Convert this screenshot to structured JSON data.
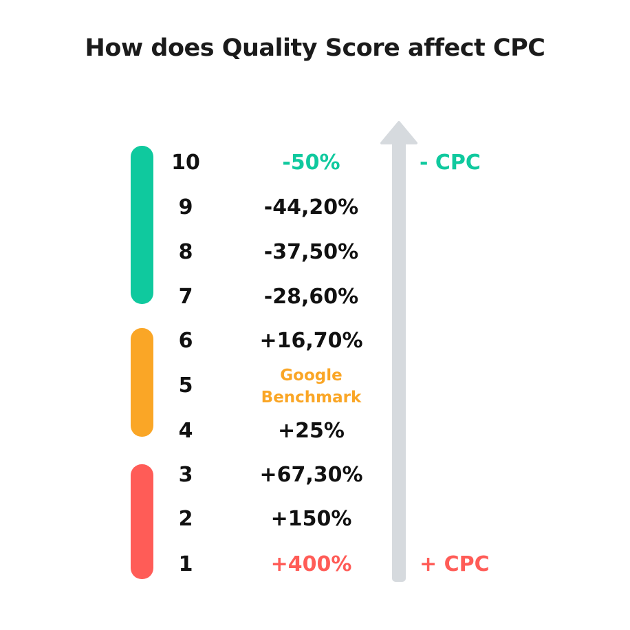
{
  "title": "How does Quality Score affect CPC",
  "colors": {
    "green": "#0fc99e",
    "orange": "#faa626",
    "red": "#ff5c57",
    "arrow": "#d6dade",
    "text": "#111111"
  },
  "rows": [
    {
      "score": "10",
      "value": "-50%",
      "value_color": "green"
    },
    {
      "score": "9",
      "value": "-44,20%",
      "value_color": "text"
    },
    {
      "score": "8",
      "value": "-37,50%",
      "value_color": "text"
    },
    {
      "score": "7",
      "value": "-28,60%",
      "value_color": "text"
    },
    {
      "score": "6",
      "value": "+16,70%",
      "value_color": "text"
    },
    {
      "score": "5",
      "value": "",
      "value_color": "text"
    },
    {
      "score": "4",
      "value": "+25%",
      "value_color": "text"
    },
    {
      "score": "3",
      "value": "+67,30%",
      "value_color": "text"
    },
    {
      "score": "2",
      "value": "+150%",
      "value_color": "text"
    },
    {
      "score": "1",
      "value": "+400%",
      "value_color": "red"
    }
  ],
  "benchmark": {
    "line1": "Google",
    "line2": "Benchmark"
  },
  "cpc_labels": {
    "top": "- CPC",
    "bottom": "+ CPC"
  },
  "arrow_icon": "up-arrow-icon"
}
